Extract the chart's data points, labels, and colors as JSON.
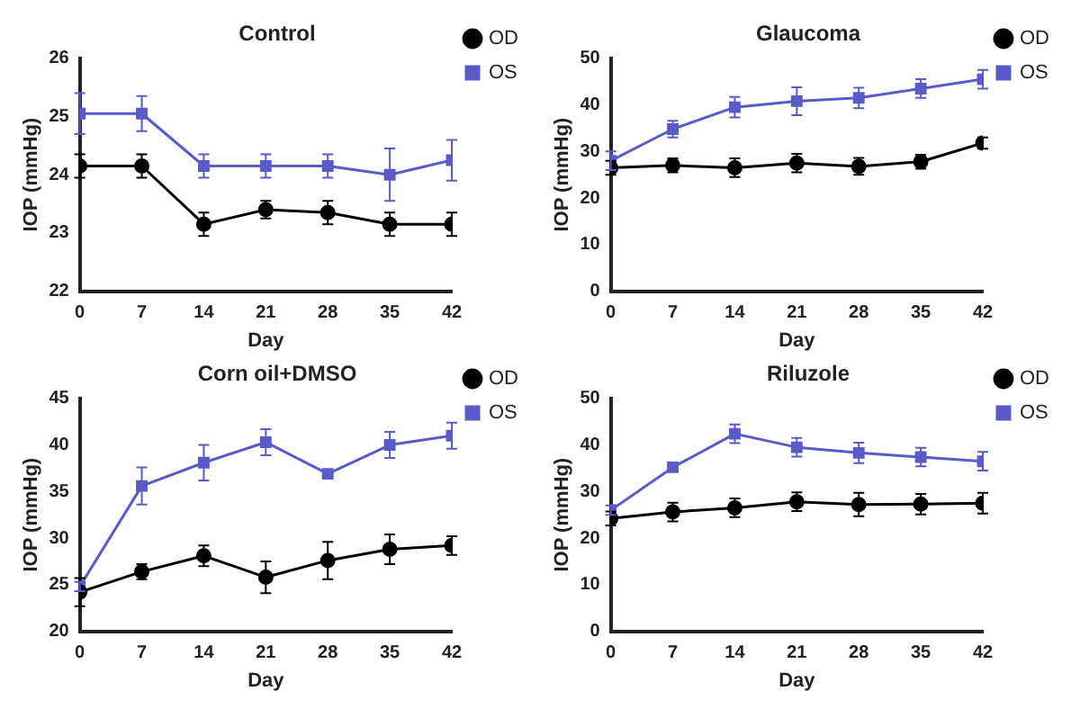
{
  "chart_data": [
    {
      "type": "line",
      "title": "Control",
      "xlabel": "Day",
      "ylabel": "IOP (mmHg)",
      "x": [
        0,
        7,
        14,
        21,
        28,
        35,
        42
      ],
      "xlim": [
        0,
        42
      ],
      "xticks": [
        0,
        7,
        14,
        21,
        28,
        35,
        42
      ],
      "ylim": [
        22,
        26
      ],
      "yticks": [
        22,
        23,
        24,
        25,
        26
      ],
      "legend": "top right",
      "grid": false,
      "series": [
        {
          "name": "OD",
          "color": "#000000",
          "marker": "circle",
          "values": [
            24.15,
            24.15,
            23.15,
            23.4,
            23.35,
            23.15,
            23.15
          ],
          "errors": [
            0.2,
            0.2,
            0.2,
            0.15,
            0.2,
            0.2,
            0.2
          ]
        },
        {
          "name": "OS",
          "color": "#5a5ac8",
          "marker": "square",
          "values": [
            25.05,
            25.05,
            24.15,
            24.15,
            24.15,
            24.0,
            24.25
          ],
          "errors": [
            0.35,
            0.3,
            0.2,
            0.2,
            0.2,
            0.45,
            0.35
          ]
        }
      ]
    },
    {
      "type": "line",
      "title": "Glaucoma",
      "xlabel": "Day",
      "ylabel": "IOP (mmHg)",
      "x": [
        0,
        7,
        14,
        21,
        28,
        35,
        42
      ],
      "xlim": [
        0,
        42
      ],
      "xticks": [
        0,
        7,
        14,
        21,
        28,
        35,
        42
      ],
      "ylim": [
        0,
        50
      ],
      "yticks": [
        0,
        10,
        20,
        30,
        40,
        50
      ],
      "legend": "top right",
      "grid": false,
      "series": [
        {
          "name": "OD",
          "color": "#000000",
          "marker": "circle",
          "values": [
            26.5,
            27,
            26.5,
            27.5,
            26.8,
            27.8,
            31.8
          ],
          "errors": [
            1.5,
            1.5,
            2,
            2,
            1.8,
            1.5,
            1.2
          ]
        },
        {
          "name": "OS",
          "color": "#5a5ac8",
          "marker": "square",
          "values": [
            28,
            34.8,
            39.5,
            40.8,
            41.5,
            43.5,
            45.5
          ],
          "errors": [
            2,
            1.8,
            2.2,
            3,
            2.2,
            2,
            2
          ]
        }
      ]
    },
    {
      "type": "line",
      "title": "Corn oil+DMSO",
      "xlabel": "Day",
      "ylabel": "IOP (mmHg)",
      "x": [
        0,
        7,
        14,
        21,
        28,
        35,
        42
      ],
      "xlim": [
        0,
        42
      ],
      "xticks": [
        0,
        7,
        14,
        21,
        28,
        35,
        42
      ],
      "ylim": [
        20,
        45
      ],
      "yticks": [
        20,
        25,
        30,
        35,
        40,
        45
      ],
      "legend": "top right",
      "grid": false,
      "series": [
        {
          "name": "OD",
          "color": "#000000",
          "marker": "circle",
          "values": [
            24.2,
            26.4,
            28.1,
            25.8,
            27.6,
            28.8,
            29.2
          ],
          "errors": [
            1.5,
            0.8,
            1.1,
            1.7,
            2,
            1.6,
            1
          ]
        },
        {
          "name": "OS",
          "color": "#5a5ac8",
          "marker": "square",
          "values": [
            24.8,
            35.6,
            38.1,
            40.3,
            36.9,
            40,
            41
          ],
          "errors": [
            0.5,
            2,
            1.9,
            1.4,
            0.3,
            1.4,
            1.4
          ]
        }
      ]
    },
    {
      "type": "line",
      "title": "Riluzole",
      "xlabel": "Day",
      "ylabel": "IOP (mmHg)",
      "x": [
        0,
        7,
        14,
        21,
        28,
        35,
        42
      ],
      "xlim": [
        0,
        42
      ],
      "xticks": [
        0,
        7,
        14,
        21,
        28,
        35,
        42
      ],
      "ylim": [
        0,
        50
      ],
      "yticks": [
        0,
        10,
        20,
        30,
        40,
        50
      ],
      "legend": "top right",
      "grid": false,
      "series": [
        {
          "name": "OD",
          "color": "#000000",
          "marker": "circle",
          "values": [
            24.2,
            25.6,
            26.5,
            27.8,
            27.2,
            27.3,
            27.5
          ],
          "errors": [
            1.5,
            2,
            2,
            2,
            2.5,
            2.2,
            2.2
          ]
        },
        {
          "name": "OS",
          "color": "#5a5ac8",
          "marker": "square",
          "values": [
            26,
            35.2,
            42.4,
            39.5,
            38.3,
            37.4,
            36.5
          ],
          "errors": [
            1,
            0.8,
            2,
            2,
            2.2,
            2,
            2
          ]
        }
      ]
    }
  ]
}
